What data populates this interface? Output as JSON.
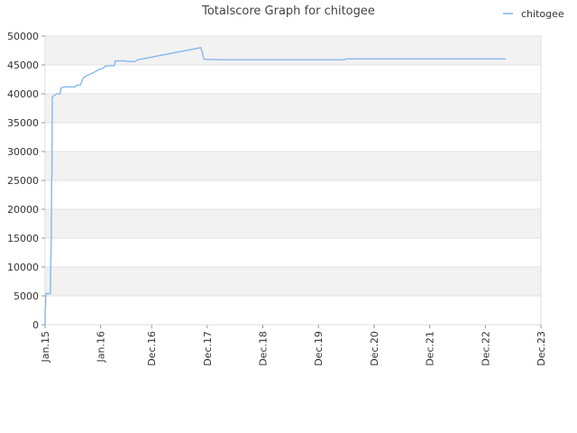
{
  "chart_data": {
    "type": "line",
    "title": "Totalscore Graph for chitogee",
    "xlabel": "",
    "ylabel": "",
    "x_axis_type": "date",
    "xlim": [
      "2015-01-01",
      "2023-12-01"
    ],
    "ylim": [
      0,
      50000
    ],
    "yticks": [
      0,
      5000,
      10000,
      15000,
      20000,
      25000,
      30000,
      35000,
      40000,
      45000,
      50000
    ],
    "yticks_labels": [
      "0",
      "5000",
      "10000",
      "15000",
      "20000",
      "25000",
      "30000",
      "35000",
      "40000",
      "45000",
      "50000"
    ],
    "xticks": [
      {
        "date": "2015-01-01",
        "label": "Jan.15"
      },
      {
        "date": "2016-01-01",
        "label": "Jan.16"
      },
      {
        "date": "2016-12-01",
        "label": "Dec.16"
      },
      {
        "date": "2017-12-01",
        "label": "Dec.17"
      },
      {
        "date": "2018-12-01",
        "label": "Dec.18"
      },
      {
        "date": "2019-12-01",
        "label": "Dec.19"
      },
      {
        "date": "2020-12-01",
        "label": "Dec.20"
      },
      {
        "date": "2021-12-01",
        "label": "Dec.21"
      },
      {
        "date": "2022-12-01",
        "label": "Dec.22"
      },
      {
        "date": "2023-12-01",
        "label": "Dec.23"
      }
    ],
    "grid": true,
    "alternating_bands": true,
    "legend_position": "top-right",
    "series": [
      {
        "name": "chitogee",
        "color": "#7cb5ec",
        "points": [
          [
            "2015-01-01",
            0
          ],
          [
            "2015-01-02",
            2800
          ],
          [
            "2015-01-04",
            3000
          ],
          [
            "2015-01-05",
            5000
          ],
          [
            "2015-01-08",
            5400
          ],
          [
            "2015-02-05",
            5400
          ],
          [
            "2015-02-07",
            11000
          ],
          [
            "2015-02-09",
            12000
          ],
          [
            "2015-02-11",
            16000
          ],
          [
            "2015-02-13",
            25000
          ],
          [
            "2015-02-15",
            26000
          ],
          [
            "2015-02-17",
            39500
          ],
          [
            "2015-03-20",
            40000
          ],
          [
            "2015-04-10",
            40000
          ],
          [
            "2015-04-14",
            41000
          ],
          [
            "2015-05-05",
            41200
          ],
          [
            "2015-07-20",
            41200
          ],
          [
            "2015-07-25",
            41500
          ],
          [
            "2015-08-20",
            41500
          ],
          [
            "2015-09-10",
            42800
          ],
          [
            "2015-10-05",
            43200
          ],
          [
            "2015-11-10",
            43600
          ],
          [
            "2015-12-20",
            44200
          ],
          [
            "2016-01-15",
            44400
          ],
          [
            "2016-02-01",
            44800
          ],
          [
            "2016-04-01",
            44900
          ],
          [
            "2016-04-05",
            45700
          ],
          [
            "2016-05-15",
            45700
          ],
          [
            "2016-06-15",
            45700
          ],
          [
            "2016-06-20",
            45600
          ],
          [
            "2016-08-15",
            45600
          ],
          [
            "2016-09-01",
            45900
          ],
          [
            "2017-10-20",
            48000
          ],
          [
            "2017-11-10",
            46000
          ],
          [
            "2018-03-01",
            45900
          ],
          [
            "2020-05-15",
            45900
          ],
          [
            "2020-06-01",
            46050
          ],
          [
            "2023-04-15",
            46050
          ]
        ]
      }
    ]
  }
}
